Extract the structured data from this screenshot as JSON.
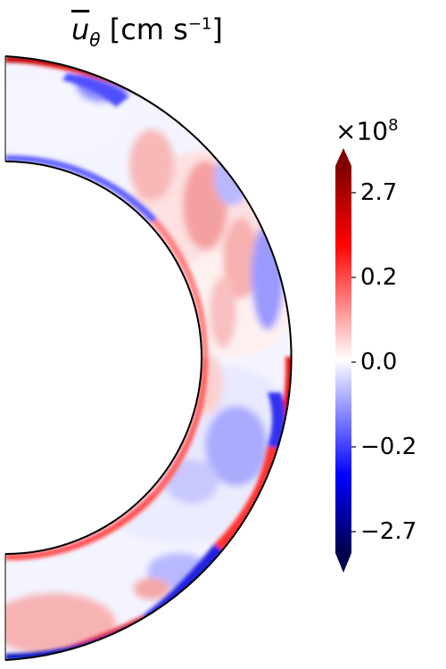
{
  "title": {
    "symbol": "u",
    "subscript": "θ",
    "unit_prefix": " [cm s",
    "unit_exp": "−1",
    "unit_suffix": "]"
  },
  "colorbar": {
    "multiplier_base": "×10",
    "multiplier_exp": "8",
    "ticks": [
      "2.7",
      "0.2",
      "0.0",
      "−0.2",
      "−2.7"
    ],
    "colormap": "seismic",
    "colors": {
      "min": "#00004c",
      "low": "#0000ff",
      "zero": "#ffffff",
      "high": "#ff0000",
      "max": "#800000"
    },
    "extend": "both"
  },
  "chart_data": {
    "type": "heatmap",
    "description_variable": "azimuthally averaged latitudinal velocity",
    "colorbar_ticks": [
      2.7,
      0.2,
      0.0,
      -0.2,
      -2.7
    ],
    "colorbar_units": "cm s^-1 (×10^8)",
    "domain": "meridional half-annulus",
    "grid": false
  }
}
